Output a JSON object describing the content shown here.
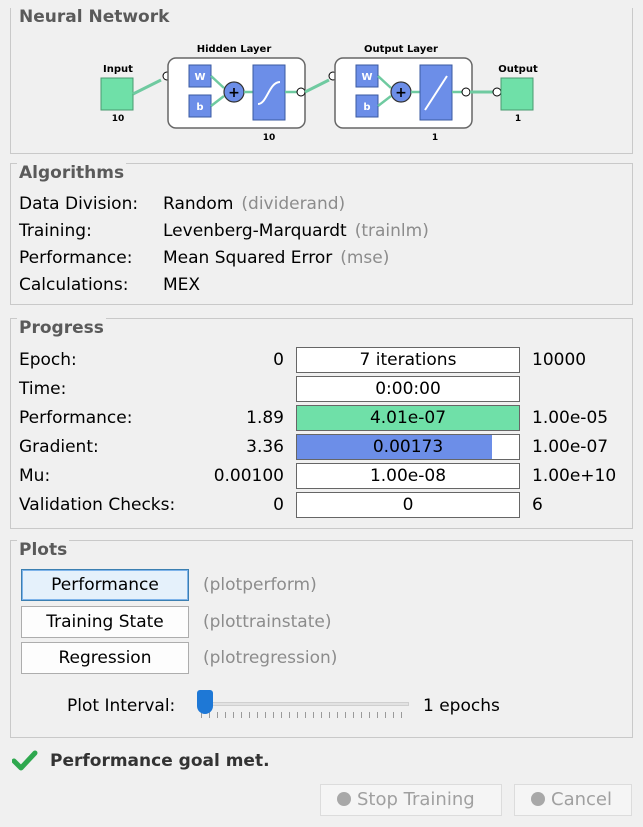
{
  "neural_network": {
    "title": "Neural Network",
    "input_label": "Input",
    "input_size": "10",
    "hidden_layer_label": "Hidden Layer",
    "hidden_size": "10",
    "output_layer_label": "Output Layer",
    "output_layer_size": "1",
    "output_label": "Output",
    "output_size": "1",
    "weight_symbol": "W",
    "bias_symbol": "b"
  },
  "algorithms": {
    "title": "Algorithms",
    "rows": [
      {
        "key": "Data Division:",
        "value": "Random",
        "paren": "(dividerand)"
      },
      {
        "key": "Training:",
        "value": "Levenberg-Marquardt",
        "paren": "(trainlm)"
      },
      {
        "key": "Performance:",
        "value": "Mean Squared Error",
        "paren": "(mse)"
      },
      {
        "key": "Calculations:",
        "value": "MEX",
        "paren": ""
      }
    ]
  },
  "progress": {
    "title": "Progress",
    "rows": [
      {
        "label": "Epoch:",
        "start": "0",
        "current": "7 iterations",
        "end": "10000",
        "fill_fraction": 0,
        "fill_color": ""
      },
      {
        "label": "Time:",
        "start": "",
        "current": "0:00:00",
        "end": "",
        "fill_fraction": 0,
        "fill_color": ""
      },
      {
        "label": "Performance:",
        "start": "1.89",
        "current": "4.01e-07",
        "end": "1.00e-05",
        "fill_fraction": 1.0,
        "fill_color": "#6fe0a8"
      },
      {
        "label": "Gradient:",
        "start": "3.36",
        "current": "0.00173",
        "end": "1.00e-07",
        "fill_fraction": 0.88,
        "fill_color": "#6c8ee8"
      },
      {
        "label": "Mu:",
        "start": "0.00100",
        "current": "1.00e-08",
        "end": "1.00e+10",
        "fill_fraction": 0,
        "fill_color": ""
      },
      {
        "label": "Validation Checks:",
        "start": "0",
        "current": "0",
        "end": "6",
        "fill_fraction": 0,
        "fill_color": ""
      }
    ]
  },
  "plots": {
    "title": "Plots",
    "buttons": [
      {
        "label": "Performance",
        "fn": "(plotperform)"
      },
      {
        "label": "Training State",
        "fn": "(plottrainstate)"
      },
      {
        "label": "Regression",
        "fn": "(plotregression)"
      }
    ],
    "interval_label": "Plot Interval:",
    "interval_value": "1 epochs",
    "interval_fraction": 0
  },
  "status": {
    "text": "Performance goal met.",
    "icon": "checkmark-icon",
    "color": "#2fa84f"
  },
  "footer": {
    "stop_label": "Stop Training",
    "cancel_label": "Cancel"
  }
}
